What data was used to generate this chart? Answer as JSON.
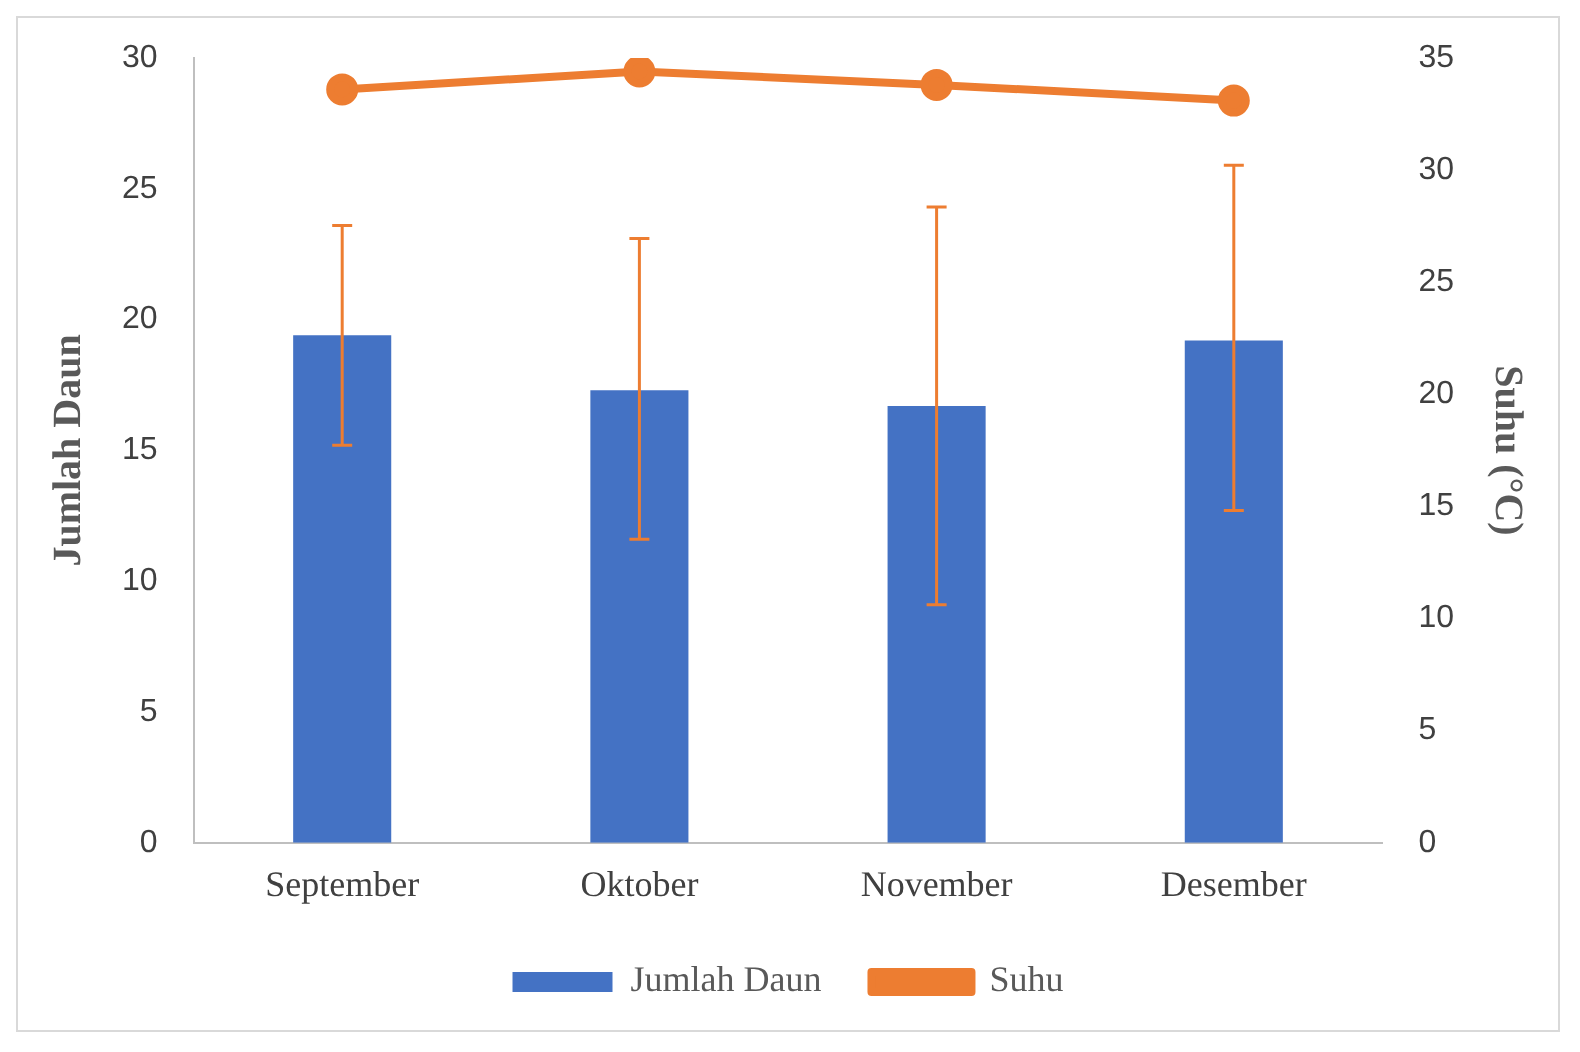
{
  "chart_data": {
    "type": "bar",
    "xlabel": null,
    "ylabel": "Jumlah Daun",
    "y2label": "Suhu (°C)",
    "categories": [
      "September",
      "Oktober",
      "November",
      "Desember"
    ],
    "series": [
      {
        "name": "Jumlah Daun",
        "color": "#4472c4",
        "values": [
          19.4,
          17.3,
          16.7,
          19.2
        ],
        "errors": [
          [
            15.2,
            23.6
          ],
          [
            11.6,
            23.1
          ],
          [
            9.1,
            24.3
          ],
          [
            12.7,
            25.9
          ]
        ]
      },
      {
        "name": "Suhu",
        "type": "line",
        "axis": "y2",
        "color": "#ed7d31",
        "values": [
          33.6,
          34.4,
          33.8,
          33.1
        ]
      }
    ],
    "ylim": [
      0,
      30
    ],
    "yticks": [
      0,
      5,
      10,
      15,
      20,
      25,
      30
    ],
    "y2lim": [
      0,
      35
    ],
    "y2ticks": [
      0,
      5,
      10,
      15,
      20,
      25,
      30,
      35
    ],
    "grid": false,
    "legend": "bottom",
    "marker": "circle",
    "line_style": "solid"
  }
}
